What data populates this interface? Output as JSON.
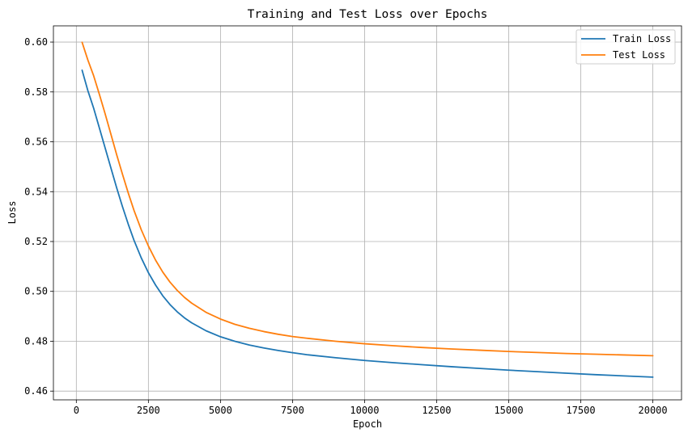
{
  "chart_data": {
    "type": "line",
    "title": "Training and Test Loss over Epochs",
    "xlabel": "Epoch",
    "ylabel": "Loss",
    "xlim": [
      -795,
      20995
    ],
    "ylim": [
      0.4565,
      0.6065
    ],
    "xticks": [
      0,
      2500,
      5000,
      7500,
      10000,
      12500,
      15000,
      17500,
      20000
    ],
    "xtick_labels": [
      "0",
      "2500",
      "5000",
      "7500",
      "10000",
      "12500",
      "15000",
      "17500",
      "20000"
    ],
    "yticks": [
      0.46,
      0.48,
      0.5,
      0.52,
      0.54,
      0.56,
      0.58,
      0.6
    ],
    "ytick_labels": [
      "0.46",
      "0.48",
      "0.50",
      "0.52",
      "0.54",
      "0.56",
      "0.58",
      "0.60"
    ],
    "grid": true,
    "legend_position": "top-right",
    "x": [
      200,
      400,
      600,
      800,
      1000,
      1200,
      1400,
      1600,
      1800,
      2000,
      2250,
      2500,
      2750,
      3000,
      3250,
      3500,
      3750,
      4000,
      4500,
      5000,
      5500,
      6000,
      6500,
      7000,
      7500,
      8000,
      9000,
      10000,
      11000,
      12000,
      13000,
      14000,
      15000,
      16000,
      17000,
      18000,
      19000,
      20000
    ],
    "series": [
      {
        "name": "Train Loss",
        "color": "#1f77b4",
        "values": [
          0.5887,
          0.5805,
          0.5735,
          0.5655,
          0.5575,
          0.5495,
          0.5415,
          0.534,
          0.527,
          0.5205,
          0.5135,
          0.5075,
          0.5025,
          0.4982,
          0.4947,
          0.4918,
          0.4894,
          0.4874,
          0.4842,
          0.4818,
          0.48,
          0.4785,
          0.4773,
          0.4763,
          0.4754,
          0.4746,
          0.4734,
          0.4723,
          0.4714,
          0.4706,
          0.4698,
          0.4691,
          0.4684,
          0.4678,
          0.4672,
          0.4666,
          0.4661,
          0.4656
        ]
      },
      {
        "name": "Test Loss",
        "color": "#ff7f0e",
        "values": [
          0.5999,
          0.5928,
          0.5865,
          0.579,
          0.5712,
          0.563,
          0.5548,
          0.547,
          0.5395,
          0.5325,
          0.5248,
          0.5182,
          0.5125,
          0.5077,
          0.5037,
          0.5004,
          0.4976,
          0.4953,
          0.4916,
          0.4889,
          0.4868,
          0.4852,
          0.4839,
          0.4828,
          0.4819,
          0.4812,
          0.48,
          0.479,
          0.4782,
          0.4775,
          0.4769,
          0.4764,
          0.4759,
          0.4755,
          0.4751,
          0.4748,
          0.4745,
          0.4742
        ]
      }
    ]
  }
}
